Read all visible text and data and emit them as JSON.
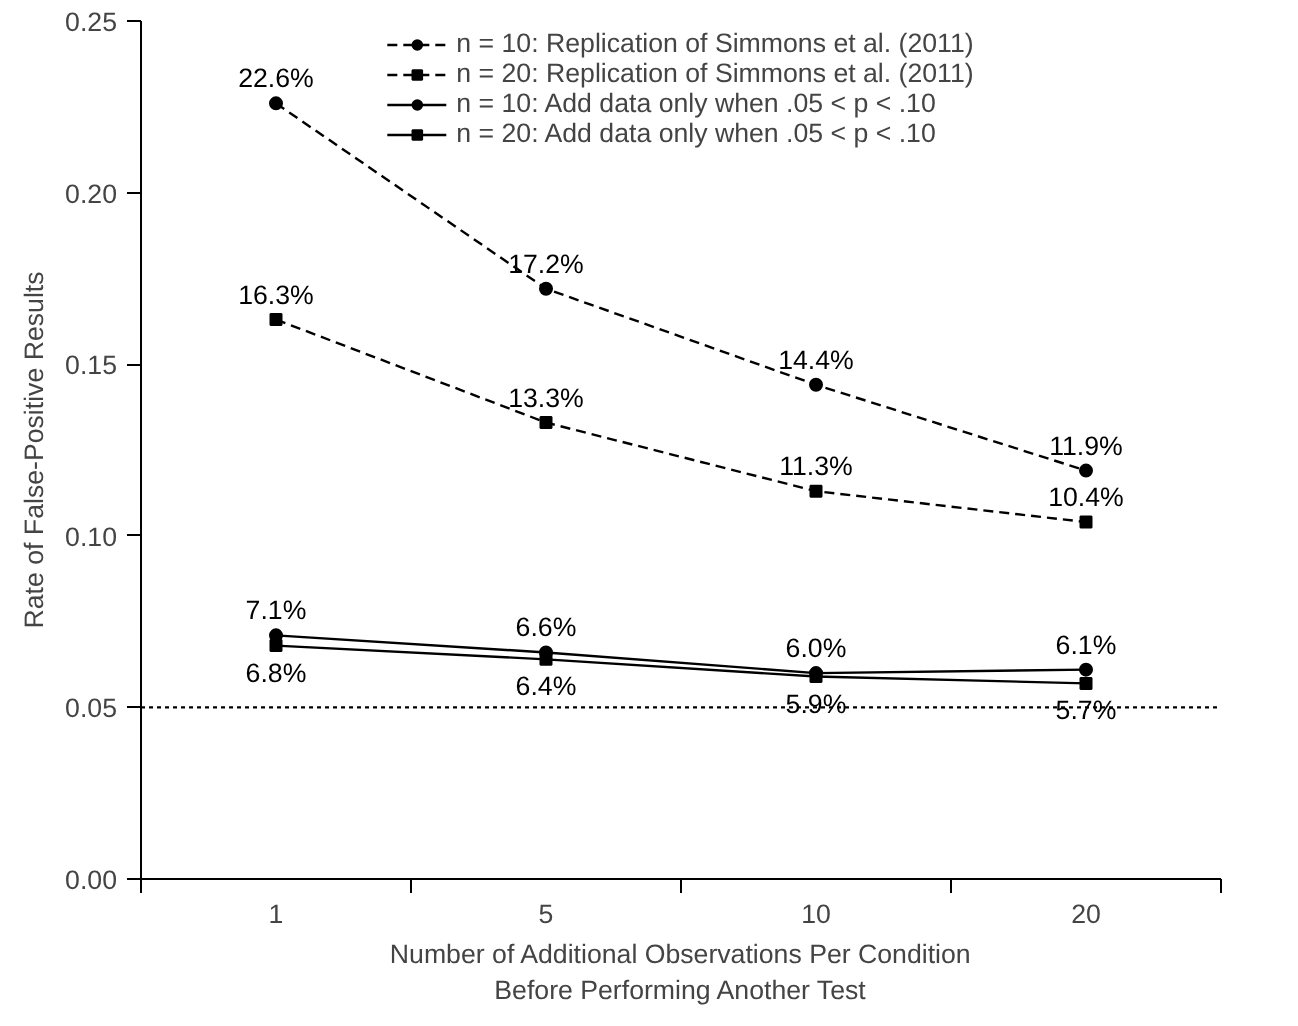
{
  "chart_data": {
    "type": "line",
    "xlabel": "Number of Additional Observations Per Condition\nBefore Performing Another Test",
    "ylabel": "Rate of False-Positive Results",
    "categories": [
      "1",
      "5",
      "10",
      "20"
    ],
    "series": [
      {
        "name": "n = 10: Replication of Simmons et al. (2011)",
        "color": "#000000",
        "marker": "circle",
        "line_style": "dashed",
        "values": [
          0.226,
          0.172,
          0.144,
          0.119
        ],
        "value_labels": [
          "22.6%",
          "17.2%",
          "14.4%",
          "11.9%"
        ]
      },
      {
        "name": "n = 20: Replication of Simmons et al. (2011)",
        "color": "#000000",
        "marker": "square",
        "line_style": "dashed",
        "values": [
          0.163,
          0.133,
          0.113,
          0.104
        ],
        "value_labels": [
          "16.3%",
          "13.3%",
          "11.3%",
          "10.4%"
        ]
      },
      {
        "name": "n = 10: Add data only when .05 < p < .10",
        "color": "#000000",
        "marker": "circle",
        "line_style": "solid",
        "values": [
          0.071,
          0.066,
          0.06,
          0.061
        ],
        "value_labels": [
          "7.1%",
          "6.6%",
          "6.0%",
          "6.1%"
        ]
      },
      {
        "name": "n = 20: Add data only when .05 < p < .10",
        "color": "#000000",
        "marker": "square",
        "line_style": "solid",
        "values": [
          0.068,
          0.064,
          0.059,
          0.057
        ],
        "value_labels": [
          "6.8%",
          "6.4%",
          "5.9%",
          "5.7%"
        ]
      }
    ],
    "ylim": [
      0,
      0.25
    ],
    "yticks": [
      {
        "value": 0,
        "label": "0.00"
      },
      {
        "value": 0.05,
        "label": "0.05"
      },
      {
        "value": 0.1,
        "label": "0.10"
      },
      {
        "value": 0.15,
        "label": "0.15"
      },
      {
        "value": 0.2,
        "label": "0.20"
      },
      {
        "value": 0.25,
        "label": "0.25"
      }
    ],
    "ref_lines": [
      {
        "axis": "y",
        "value": 0.05,
        "line_style": "dotted",
        "color": "#000000"
      }
    ],
    "legend": "top",
    "grid": false
  }
}
